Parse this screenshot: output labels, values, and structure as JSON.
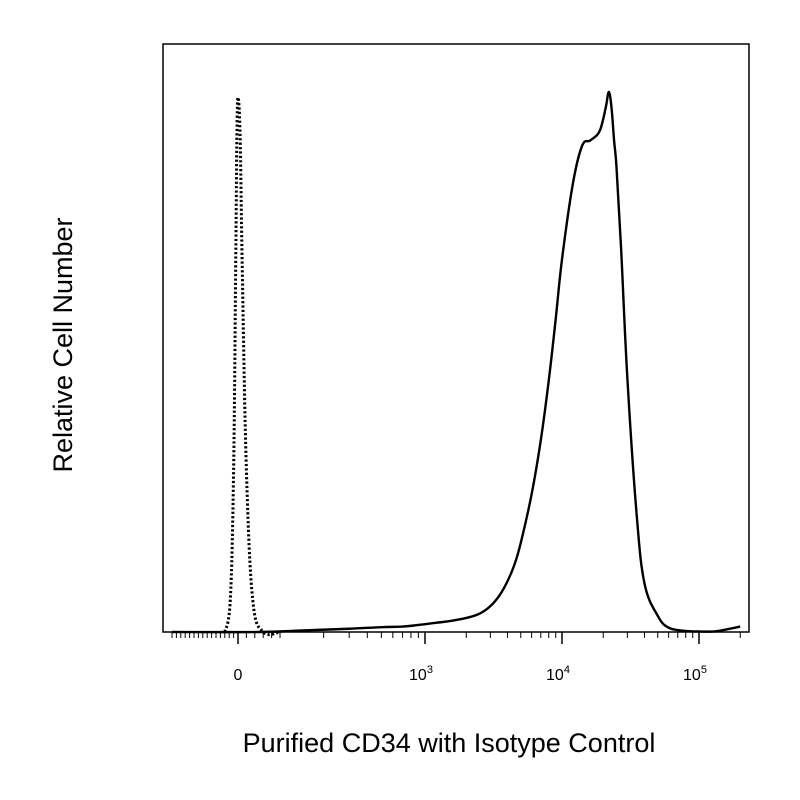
{
  "chart_data": {
    "type": "line",
    "title": "",
    "xlabel": "Purified CD34 with Isotype Control",
    "ylabel": "Relative Cell Number",
    "x_scale": "biexponential",
    "xlim": [
      -300,
      200000
    ],
    "ylim": [
      0,
      100
    ],
    "grid": false,
    "legend": "none",
    "x_tick_labels": [
      {
        "value": 0,
        "base": "0",
        "exp": ""
      },
      {
        "value": 1000,
        "base": "10",
        "exp": "3"
      },
      {
        "value": 10000,
        "base": "10",
        "exp": "4"
      },
      {
        "value": 100000,
        "base": "10",
        "exp": "5"
      }
    ],
    "series": [
      {
        "style": "dotted",
        "color": "#000000",
        "x": [
          -60,
          -35,
          -20,
          -10,
          -5,
          0,
          5,
          10,
          20,
          35,
          60,
          100
        ],
        "y": [
          0,
          6,
          30,
          70,
          92,
          99,
          92,
          68,
          30,
          6,
          0,
          0
        ]
      },
      {
        "style": "solid",
        "color": "#000000",
        "x": [
          -300,
          50,
          150,
          300,
          500,
          700,
          900,
          1200,
          1500,
          2000,
          2500,
          3000,
          3500,
          4000,
          4500,
          5000,
          6000,
          7000,
          8000,
          9000,
          10000,
          12000,
          14000,
          16000,
          18000,
          19000,
          20000,
          21000,
          22000,
          23000,
          24000,
          25000,
          27000,
          30000,
          35000,
          40000,
          50000,
          60000,
          80000,
          100000,
          130000,
          160000,
          200000
        ],
        "y": [
          0,
          0,
          0.3,
          0.6,
          0.9,
          1.0,
          1.3,
          1.7,
          2.0,
          2.6,
          3.4,
          4.8,
          6.8,
          9.4,
          12.5,
          16.5,
          25.5,
          35.5,
          46.5,
          58,
          69,
          83,
          90,
          91,
          92,
          93,
          95,
          97.5,
          100,
          97,
          91,
          86,
          71,
          47,
          22,
          9,
          3,
          0.8,
          0.2,
          0.1,
          0.1,
          0.5,
          1
        ]
      }
    ]
  }
}
